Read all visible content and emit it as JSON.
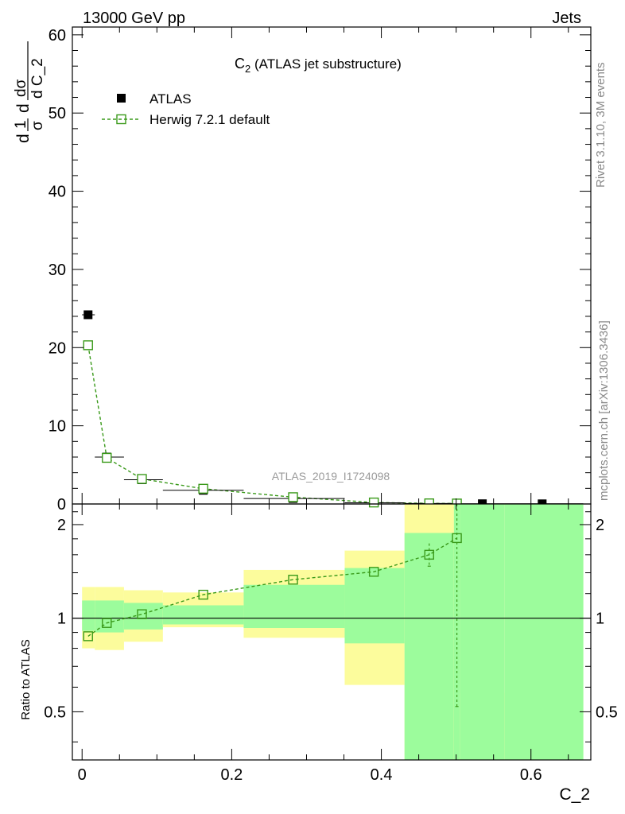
{
  "header": {
    "left": "13000 GeV pp",
    "right": "Jets"
  },
  "side_labels": {
    "rivet": "Rivet 3.1.10,  3M events",
    "mcplots": "mcplots.cern.ch [arXiv:1306.3436]"
  },
  "analysis_id": "ATLAS_2019_I1724098",
  "colors": {
    "data": "#000000",
    "mc": "#3a9a1a",
    "band_inner": "#9cfc9c",
    "band_outer": "#fcfc9c"
  },
  "chart_data": [
    {
      "type": "scatter",
      "title_main": "C",
      "title_sub": "2",
      "title_rest": " (ATLAS jet substructure)",
      "ylabel": {
        "frac1_num": "1",
        "frac1_den": "σ",
        "frac2_num": "dσ",
        "frac2_den": "d C_2",
        "prefix": "d"
      },
      "xlim": [
        -0.013,
        0.68
      ],
      "ylim": [
        0,
        61
      ],
      "y_ticks": [
        0,
        10,
        20,
        30,
        40,
        50,
        60
      ],
      "y_tick_labels": [
        "0",
        "10",
        "20",
        "30",
        "40",
        "50",
        "60"
      ],
      "legend_position": "top-left",
      "series": [
        {
          "name": "ATLAS",
          "kind": "data",
          "x": [
            0.008,
            0.033,
            0.08,
            0.162,
            0.282,
            0.39,
            0.464,
            0.501,
            0.535,
            0.615
          ],
          "x_low": [
            0.0,
            0.017,
            0.056,
            0.108,
            0.216,
            0.351,
            0.431,
            0.497,
            0.505,
            0.565
          ],
          "x_high": [
            0.017,
            0.056,
            0.108,
            0.216,
            0.351,
            0.431,
            0.497,
            0.505,
            0.565,
            0.67
          ],
          "y": [
            24.2,
            6.0,
            3.1,
            1.75,
            0.7,
            0.15,
            0.06,
            0.04,
            0.03,
            0.02
          ]
        },
        {
          "name": "Herwig 7.2.1 default",
          "kind": "mc",
          "x": [
            0.008,
            0.033,
            0.08,
            0.162,
            0.282,
            0.39,
            0.464,
            0.501
          ],
          "y": [
            20.3,
            5.9,
            3.2,
            1.95,
            0.87,
            0.19,
            0.08,
            0.06
          ]
        }
      ]
    },
    {
      "type": "scatter",
      "ylabel": "Ratio to ATLAS",
      "xlabel": "C_2",
      "xlim": [
        -0.013,
        0.68
      ],
      "ylim": [
        0.35,
        2.33
      ],
      "y_ticks": [
        0.5,
        1,
        2
      ],
      "y_tick_labels": [
        "0.5",
        "1",
        "2"
      ],
      "x_ticks": [
        0,
        0.2,
        0.4,
        0.6
      ],
      "x_tick_labels": [
        "0",
        "0.2",
        "0.4",
        "0.6"
      ],
      "reference_line": 1,
      "bands": [
        {
          "x_low": 0.0,
          "x_high": 0.017,
          "inner": [
            0.91,
            1.14
          ],
          "outer": [
            0.8,
            1.26
          ]
        },
        {
          "x_low": 0.017,
          "x_high": 0.056,
          "inner": [
            0.9,
            1.14
          ],
          "outer": [
            0.79,
            1.26
          ]
        },
        {
          "x_low": 0.056,
          "x_high": 0.108,
          "inner": [
            0.92,
            1.12
          ],
          "outer": [
            0.84,
            1.23
          ]
        },
        {
          "x_low": 0.108,
          "x_high": 0.216,
          "inner": [
            0.955,
            1.1
          ],
          "outer": [
            0.935,
            1.21
          ]
        },
        {
          "x_low": 0.216,
          "x_high": 0.351,
          "inner": [
            0.93,
            1.28
          ],
          "outer": [
            0.865,
            1.43
          ]
        },
        {
          "x_low": 0.351,
          "x_high": 0.431,
          "inner": [
            0.83,
            1.45
          ],
          "outer": [
            0.61,
            1.65
          ]
        },
        {
          "x_low": 0.431,
          "x_high": 0.497,
          "inner": [
            0.35,
            1.88
          ],
          "outer": [
            0.35,
            2.33
          ]
        },
        {
          "x_low": 0.497,
          "x_high": 0.505,
          "inner": [
            0.35,
            2.33
          ],
          "outer": [
            0.35,
            2.33
          ]
        },
        {
          "x_low": 0.505,
          "x_high": 0.565,
          "inner": [
            0.35,
            2.33
          ],
          "outer": [
            0.35,
            0.575
          ]
        },
        {
          "x_low": 0.565,
          "x_high": 0.67,
          "inner": [
            0.35,
            2.33
          ],
          "outer": [
            0.35,
            2.33
          ]
        }
      ],
      "series": [
        {
          "name": "Herwig 7.2.1 default",
          "x": [
            0.008,
            0.033,
            0.08,
            0.162,
            0.282,
            0.39,
            0.464,
            0.501
          ],
          "y": [
            0.875,
            0.965,
            1.03,
            1.19,
            1.33,
            1.41,
            1.6,
            1.81
          ],
          "y_low": [
            0.875,
            0.965,
            1.03,
            1.19,
            1.33,
            1.41,
            1.47,
            0.52
          ],
          "y_high": [
            0.875,
            0.965,
            1.03,
            1.19,
            1.33,
            1.41,
            1.74,
            2.33
          ]
        }
      ]
    }
  ]
}
